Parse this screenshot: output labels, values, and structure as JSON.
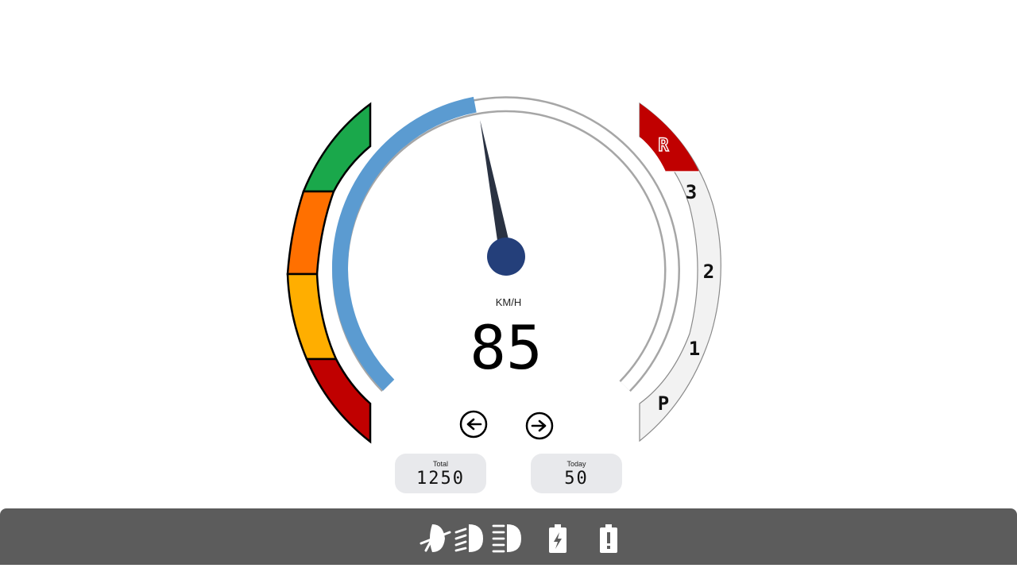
{
  "speedometer": {
    "unit": "KM/H",
    "speed": "85",
    "speed_fraction": 0.46
  },
  "gear_selector": {
    "gears": [
      "R",
      "3",
      "2",
      "1",
      "P"
    ],
    "active_gear": "R",
    "active_color": "#c00000",
    "inactive_color": "#f2f2f2"
  },
  "level_gauge": {
    "segments": [
      "#1aa84b",
      "#ff7000",
      "#ffae00",
      "#c00000"
    ]
  },
  "odometer": {
    "total_label": "Total",
    "total_value": "1250",
    "today_label": "Today",
    "today_value": "50"
  },
  "colors": {
    "arc_fill": "#5b9bd1",
    "arc_track": "#a6a6a6",
    "needle": "#2a3242",
    "hub": "#243f7a",
    "status_bar": "#5c5c5c"
  },
  "status_icons": [
    "fog-light-off-icon",
    "low-beam-icon",
    "high-beam-icon",
    "battery-charging-icon",
    "battery-warning-icon"
  ]
}
